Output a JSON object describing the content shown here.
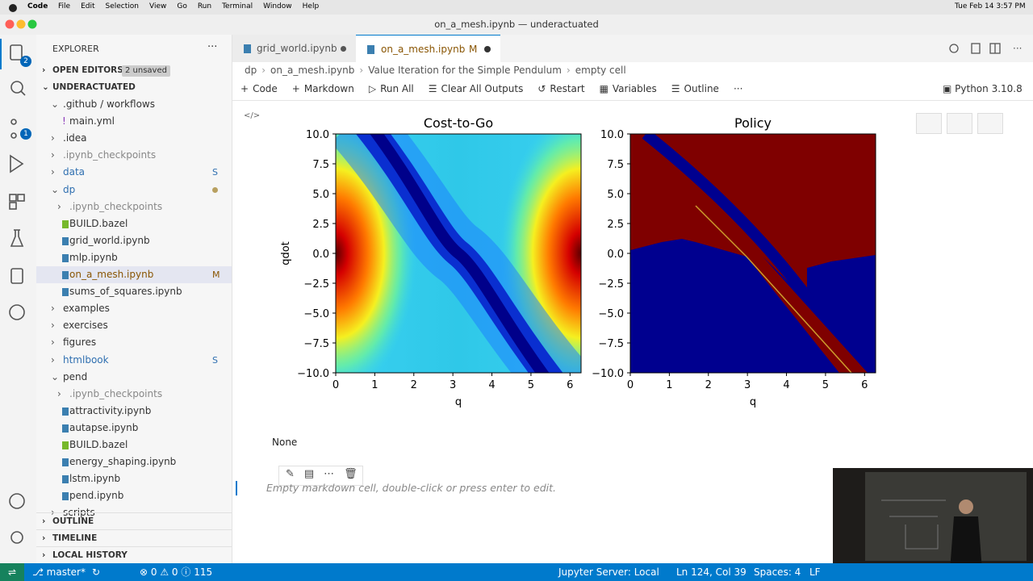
{
  "menubar": {
    "app": "Code",
    "items": [
      "File",
      "Edit",
      "Selection",
      "View",
      "Go",
      "Run",
      "Terminal",
      "Window",
      "Help"
    ],
    "clock": "Tue Feb 14  3:57 PM"
  },
  "window_title": "on_a_mesh.ipynb — underactuated",
  "activity_badges": [
    "2",
    "1"
  ],
  "sidebar": {
    "title": "EXPLORER",
    "more": "···",
    "open_editors": "OPEN EDITORS",
    "unsaved": "2 unsaved",
    "root": "UNDERACTUATED",
    "tree": [
      {
        "label": ".github / workflows",
        "depth": 1,
        "folder": true,
        "open": true
      },
      {
        "label": "main.yml",
        "depth": 2
      },
      {
        "label": ".idea",
        "depth": 1,
        "folder": true
      },
      {
        "label": ".ipynb_checkpoints",
        "depth": 1,
        "folder": true,
        "color": "#888888"
      },
      {
        "label": "data",
        "depth": 1,
        "folder": true,
        "color": "#2f6fb0",
        "badge": "S"
      },
      {
        "label": "dp",
        "depth": 1,
        "folder": true,
        "open": true,
        "color": "#2f6fb0"
      },
      {
        "label": ".ipynb_checkpoints",
        "depth": 2,
        "folder": true,
        "color": "#888888"
      },
      {
        "label": "BUILD.bazel",
        "depth": 2
      },
      {
        "label": "grid_world.ipynb",
        "depth": 2
      },
      {
        "label": "mlp.ipynb",
        "depth": 2
      },
      {
        "label": "on_a_mesh.ipynb",
        "depth": 2,
        "color": "#895503",
        "badge": "M",
        "selected": true
      },
      {
        "label": "sums_of_squares.ipynb",
        "depth": 2
      },
      {
        "label": "examples",
        "depth": 1,
        "folder": true
      },
      {
        "label": "exercises",
        "depth": 1,
        "folder": true
      },
      {
        "label": "figures",
        "depth": 1,
        "folder": true
      },
      {
        "label": "htmlbook",
        "depth": 1,
        "folder": true,
        "color": "#2f6fb0",
        "badge": "S"
      },
      {
        "label": "pend",
        "depth": 1,
        "folder": true,
        "open": true
      },
      {
        "label": ".ipynb_checkpoints",
        "depth": 2,
        "folder": true,
        "color": "#888888"
      },
      {
        "label": "attractivity.ipynb",
        "depth": 2
      },
      {
        "label": "autapse.ipynb",
        "depth": 2
      },
      {
        "label": "BUILD.bazel",
        "depth": 2
      },
      {
        "label": "energy_shaping.ipynb",
        "depth": 2
      },
      {
        "label": "lstm.ipynb",
        "depth": 2
      },
      {
        "label": "pend.ipynb",
        "depth": 2
      },
      {
        "label": "scripts",
        "depth": 1,
        "folder": true
      }
    ],
    "sections": [
      "OUTLINE",
      "TIMELINE",
      "LOCAL HISTORY"
    ]
  },
  "tabs": [
    {
      "label": "grid_world.ipynb"
    },
    {
      "label": "on_a_mesh.ipynb",
      "badge": "M"
    }
  ],
  "breadcrumbs": [
    "dp",
    "on_a_mesh.ipynb",
    "Value Iteration for the Simple Pendulum",
    "empty cell"
  ],
  "toolbar": [
    "Code",
    "Markdown",
    "Run All",
    "Clear All Outputs",
    "Restart",
    "Variables",
    "Outline",
    "···"
  ],
  "kernel": "Python 3.10.8",
  "output": {
    "plots": [
      {
        "type": "heatmap",
        "title": "Cost-to-Go",
        "xlabel": "q",
        "ylabel": "qdot",
        "xlim": [
          0,
          6.283
        ],
        "ylim": [
          -10,
          10
        ],
        "xticks": [
          0,
          1,
          2,
          3,
          4,
          5,
          6
        ],
        "yticks": [
          {
            "value": 10,
            "label": "10.0"
          },
          {
            "value": 7.5,
            "label": "7.5"
          },
          {
            "value": 5,
            "label": "5.0"
          },
          {
            "value": 2.5,
            "label": "2.5"
          },
          {
            "value": 0,
            "label": "0.0"
          },
          {
            "value": -2.5,
            "label": "−2.5"
          },
          {
            "value": -5,
            "label": "−5.0"
          },
          {
            "value": -7.5,
            "label": "−7.5"
          },
          {
            "value": -10,
            "label": "−10.0"
          }
        ]
      },
      {
        "type": "heatmap",
        "title": "Policy",
        "xlabel": "q",
        "xlim": [
          0,
          6.283
        ],
        "ylim": [
          -10,
          10
        ],
        "xticks": [
          0,
          1,
          2,
          3,
          4,
          5,
          6
        ],
        "yticks": [
          {
            "value": 10,
            "label": "10.0"
          },
          {
            "value": 7.5,
            "label": "7.5"
          },
          {
            "value": 5,
            "label": "5.0"
          },
          {
            "value": 2.5,
            "label": "2.5"
          },
          {
            "value": 0,
            "label": "0.0"
          },
          {
            "value": -2.5,
            "label": "−2.5"
          },
          {
            "value": -5,
            "label": "−5.0"
          },
          {
            "value": -7.5,
            "label": "−7.5"
          },
          {
            "value": -10,
            "label": "−10.0"
          }
        ]
      }
    ],
    "text": "None"
  },
  "markdown_placeholder": "Empty markdown cell, double-click or press enter to edit.",
  "statusbar": {
    "branch": "master*",
    "errors": "0",
    "warnings": "0",
    "info": "115",
    "server": "Jupyter Server: Local",
    "position": "Ln 124, Col 39",
    "spaces": "Spaces: 4",
    "eol": "LF"
  }
}
